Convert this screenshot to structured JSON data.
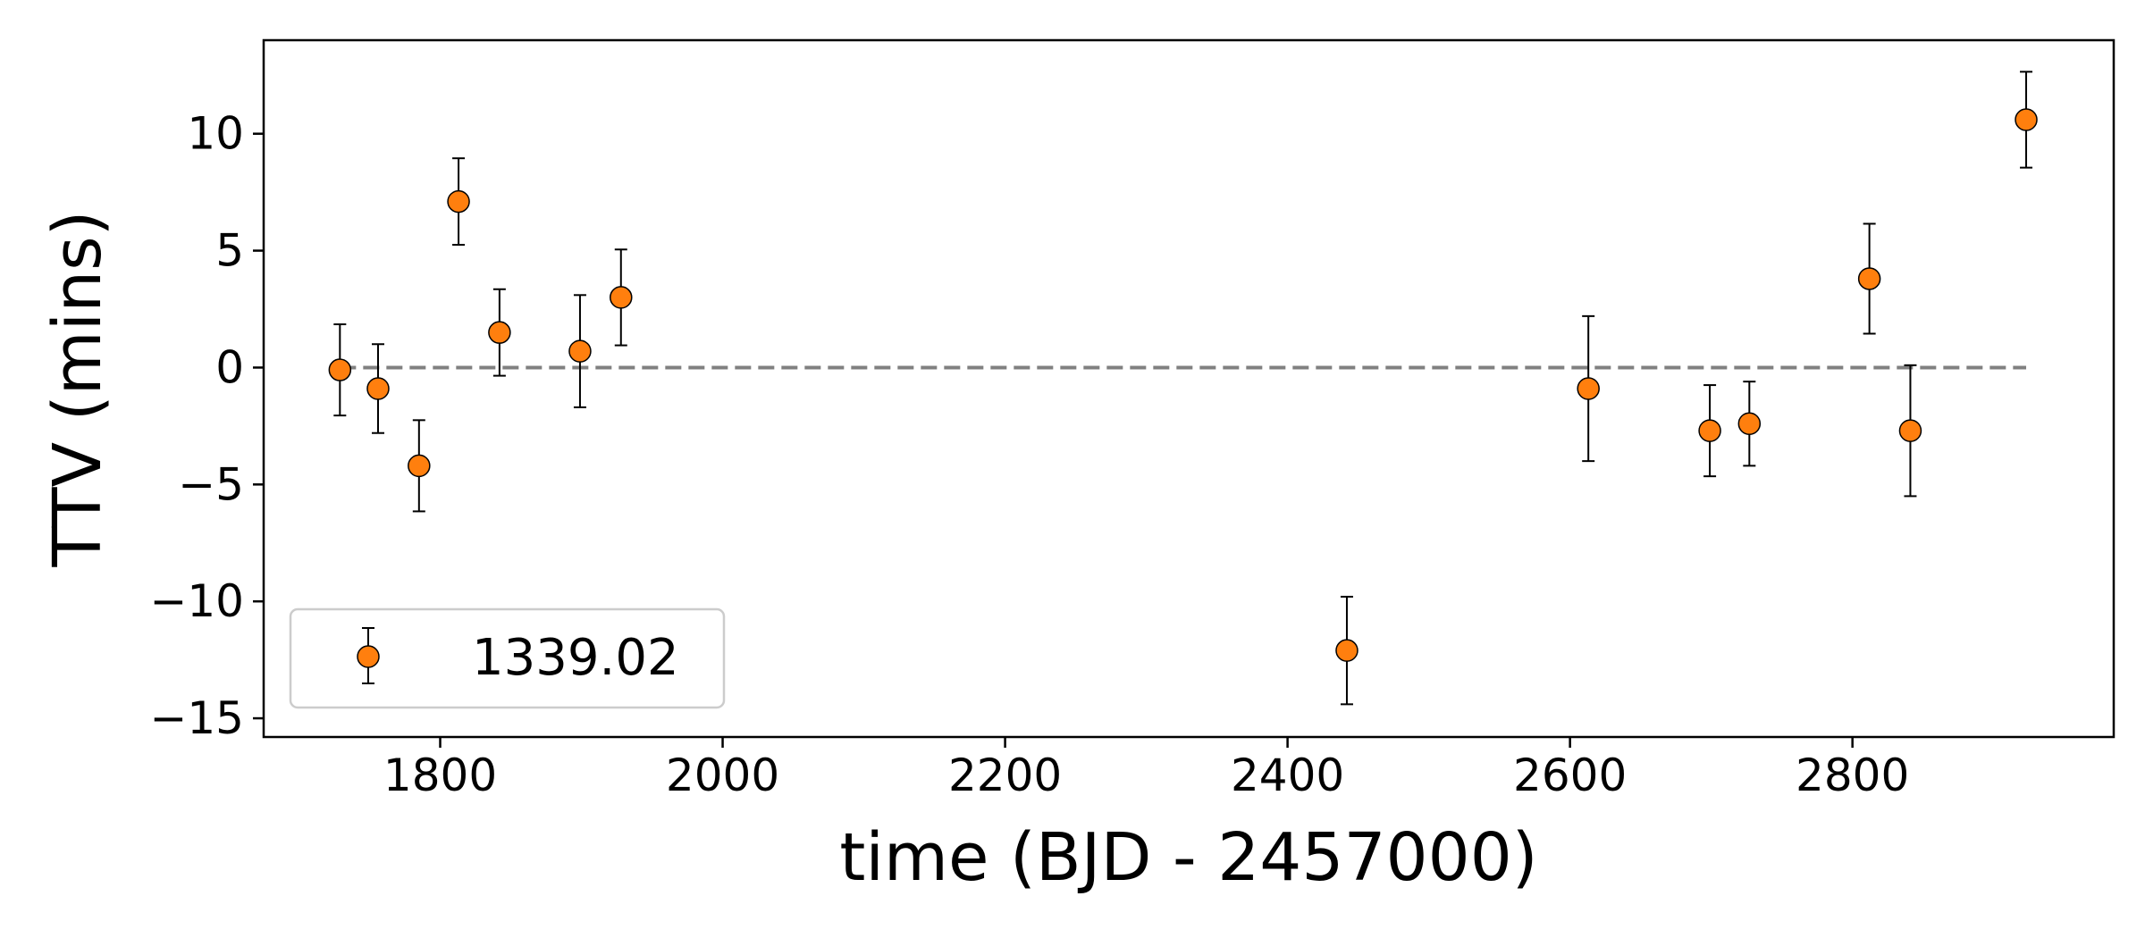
{
  "chart_data": {
    "type": "scatter",
    "xlabel": "time (BJD - 2457000)",
    "ylabel": "TTV (mins)",
    "xlim": [
      1675,
      2985
    ],
    "ylim": [
      -15.8,
      14
    ],
    "xticks": [
      1800,
      2000,
      2200,
      2400,
      2600,
      2800
    ],
    "yticks": [
      -15,
      -10,
      -5,
      0,
      5,
      10
    ],
    "xtick_labels": [
      "1800",
      "2000",
      "2200",
      "2400",
      "2600",
      "2800"
    ],
    "ytick_labels": [
      "−15",
      "−10",
      "−5",
      "0",
      "5",
      "10"
    ],
    "grid": false,
    "legend": {
      "placement": "lower-left",
      "entries": [
        "1339.02"
      ]
    },
    "reference_line": {
      "y": 0,
      "x_range": [
        1729,
        2923
      ],
      "style": "dashed",
      "color": "#808080"
    },
    "series": [
      {
        "name": "1339.02",
        "color": "#ff7f0e",
        "points": [
          {
            "x": 1729,
            "y": -0.1,
            "err": 1.95
          },
          {
            "x": 1756,
            "y": -0.9,
            "err": 1.9
          },
          {
            "x": 1785,
            "y": -4.2,
            "err": 1.95
          },
          {
            "x": 1813,
            "y": 7.1,
            "err": 1.85
          },
          {
            "x": 1842,
            "y": 1.5,
            "err": 1.85
          },
          {
            "x": 1899,
            "y": 0.7,
            "err": 2.4
          },
          {
            "x": 1928,
            "y": 3.0,
            "err": 2.05
          },
          {
            "x": 2442,
            "y": -12.1,
            "err": 2.3
          },
          {
            "x": 2613,
            "y": -0.9,
            "err": 3.1
          },
          {
            "x": 2699,
            "y": -2.7,
            "err": 1.95
          },
          {
            "x": 2727,
            "y": -2.4,
            "err": 1.8
          },
          {
            "x": 2812,
            "y": 3.8,
            "err": 2.35
          },
          {
            "x": 2841,
            "y": -2.7,
            "err": 2.8
          },
          {
            "x": 2923,
            "y": 10.6,
            "err": 2.05
          }
        ]
      }
    ]
  }
}
